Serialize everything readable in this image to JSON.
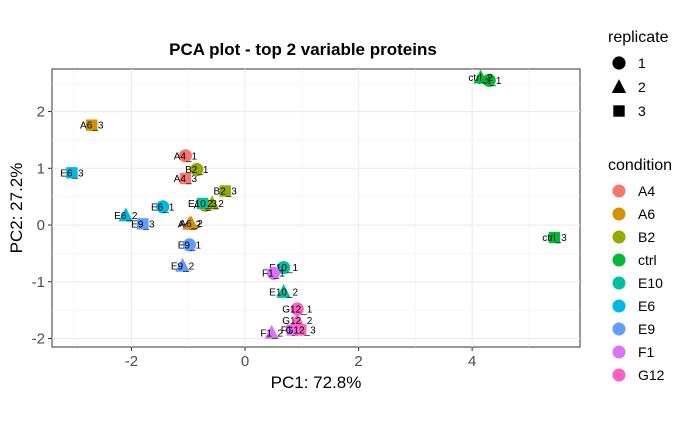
{
  "chart_data": {
    "type": "scatter",
    "title": "PCA plot - top 2 variable proteins",
    "xlabel": "PC1: 72.8%",
    "ylabel": "PC2: 27.2%",
    "xlim": [
      -3.4,
      5.9
    ],
    "ylim": [
      -2.15,
      2.75
    ],
    "xticks": [
      -2,
      0,
      2,
      4
    ],
    "yticks": [
      -2,
      -1,
      0,
      1,
      2
    ],
    "grid": true,
    "legend_position": "right",
    "shape_legend": {
      "title": "replicate",
      "entries": [
        {
          "label": "1",
          "shape": "circle"
        },
        {
          "label": "2",
          "shape": "triangle"
        },
        {
          "label": "3",
          "shape": "square"
        }
      ]
    },
    "color_legend": {
      "title": "condition",
      "entries": [
        {
          "label": "A4",
          "color": "#F8766D"
        },
        {
          "label": "A6",
          "color": "#D39200"
        },
        {
          "label": "B2",
          "color": "#93AA00"
        },
        {
          "label": "ctrl",
          "color": "#00BA38"
        },
        {
          "label": "E10",
          "color": "#00C19F"
        },
        {
          "label": "E6",
          "color": "#00B9E3"
        },
        {
          "label": "E9",
          "color": "#619CFF"
        },
        {
          "label": "F1",
          "color": "#DB72FB"
        },
        {
          "label": "G12",
          "color": "#FF61C3"
        }
      ]
    },
    "points": [
      {
        "label": "A4_1",
        "condition": "A4",
        "replicate": "1",
        "x": -1.05,
        "y": 1.22
      },
      {
        "label": "A4_2",
        "condition": "A4",
        "replicate": "2",
        "x": -0.98,
        "y": 0.02
      },
      {
        "label": "A4_3",
        "condition": "A4",
        "replicate": "3",
        "x": -1.05,
        "y": 0.82
      },
      {
        "label": "A6_1",
        "condition": "A6",
        "replicate": "1",
        "x": -0.7,
        "y": 0.35
      },
      {
        "label": "A6_2",
        "condition": "A6",
        "replicate": "2",
        "x": -0.95,
        "y": 0.03
      },
      {
        "label": "A6_3",
        "condition": "A6",
        "replicate": "3",
        "x": -2.7,
        "y": 1.76
      },
      {
        "label": "B2_1",
        "condition": "B2",
        "replicate": "1",
        "x": -0.85,
        "y": 0.98
      },
      {
        "label": "B2_2",
        "condition": "B2",
        "replicate": "2",
        "x": -0.58,
        "y": 0.38
      },
      {
        "label": "B2_3",
        "condition": "B2",
        "replicate": "3",
        "x": -0.35,
        "y": 0.6
      },
      {
        "label": "ctrl_1",
        "condition": "ctrl",
        "replicate": "1",
        "x": 4.3,
        "y": 2.55
      },
      {
        "label": "ctrl_2",
        "condition": "ctrl",
        "replicate": "2",
        "x": 4.15,
        "y": 2.6
      },
      {
        "label": "ctrl_3",
        "condition": "ctrl",
        "replicate": "3",
        "x": 5.45,
        "y": -0.22
      },
      {
        "label": "E10_1",
        "condition": "E10",
        "replicate": "1",
        "x": 0.68,
        "y": -0.75
      },
      {
        "label": "E10_2",
        "condition": "E10",
        "replicate": "2",
        "x": 0.68,
        "y": -1.18
      },
      {
        "label": "E10_3",
        "condition": "E10",
        "replicate": "3",
        "x": -0.75,
        "y": 0.38
      },
      {
        "label": "E6_1",
        "condition": "E6",
        "replicate": "1",
        "x": -1.45,
        "y": 0.32
      },
      {
        "label": "E6_2",
        "condition": "E6",
        "replicate": "2",
        "x": -2.1,
        "y": 0.17
      },
      {
        "label": "E6_3",
        "condition": "E6",
        "replicate": "3",
        "x": -3.05,
        "y": 0.92
      },
      {
        "label": "E9_1",
        "condition": "E9",
        "replicate": "1",
        "x": -0.98,
        "y": -0.35
      },
      {
        "label": "E9_2",
        "condition": "E9",
        "replicate": "2",
        "x": -1.1,
        "y": -0.72
      },
      {
        "label": "E9_3",
        "condition": "E9",
        "replicate": "3",
        "x": -1.8,
        "y": 0.02
      },
      {
        "label": "F1_1",
        "condition": "F1",
        "replicate": "1",
        "x": 0.5,
        "y": -0.85
      },
      {
        "label": "F1_2",
        "condition": "F1",
        "replicate": "2",
        "x": 0.47,
        "y": -1.9
      },
      {
        "label": "F1_3",
        "condition": "F1",
        "replicate": "3",
        "x": 0.83,
        "y": -1.85
      },
      {
        "label": "G12_1",
        "condition": "G12",
        "replicate": "1",
        "x": 0.92,
        "y": -1.48
      },
      {
        "label": "G12_2",
        "condition": "G12",
        "replicate": "2",
        "x": 0.92,
        "y": -1.68
      },
      {
        "label": "G12_3",
        "condition": "G12",
        "replicate": "3",
        "x": 0.98,
        "y": -1.85
      }
    ]
  }
}
